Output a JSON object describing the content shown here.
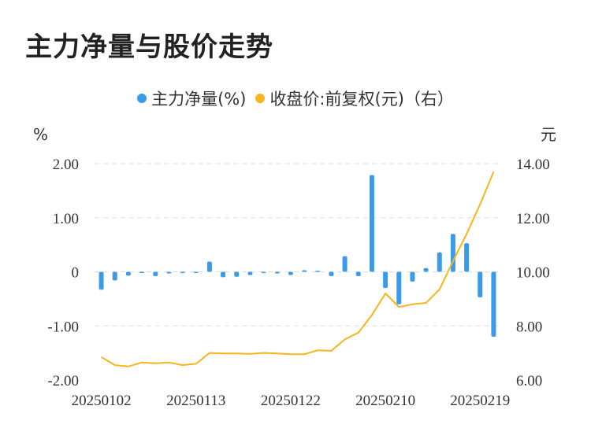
{
  "title": "主力净量与股价走势",
  "legend": {
    "series1": "主力净量(%)",
    "series2": "收盘价:前复权(元)（右）"
  },
  "colors": {
    "bar": "#3b9be8",
    "line": "#f5b51c",
    "grid": "#dddddd"
  },
  "chart_data": {
    "type": "bar+line",
    "title": "主力净量与股价走势",
    "left_unit": "%",
    "right_unit": "元",
    "ylim_left": [
      -2,
      2
    ],
    "ylim_right": [
      6,
      14
    ],
    "left_ticks": [
      "2.00",
      "1.00",
      "0",
      "-1.00",
      "-2.00"
    ],
    "right_ticks": [
      "14.00",
      "12.00",
      "10.00",
      "8.00",
      "6.00"
    ],
    "x_tick_labels": [
      "20250102",
      "20250113",
      "20250122",
      "20250210",
      "20250219"
    ],
    "x_tick_indices": [
      0,
      7,
      14,
      21,
      28
    ],
    "series": [
      {
        "name": "主力净量(%)",
        "kind": "bar",
        "values": [
          -0.33,
          -0.16,
          -0.07,
          0.0,
          -0.08,
          -0.03,
          -0.02,
          -0.02,
          0.19,
          -0.1,
          -0.09,
          -0.06,
          -0.02,
          -0.03,
          -0.06,
          0.03,
          0.02,
          -0.08,
          0.29,
          -0.08,
          1.79,
          -0.3,
          -0.6,
          -0.18,
          0.07,
          0.36,
          0.7,
          0.53,
          -0.47,
          -1.2
        ]
      },
      {
        "name": "收盘价:前复权(元)（右）",
        "kind": "line",
        "values": [
          6.85,
          6.55,
          6.5,
          6.65,
          6.62,
          6.65,
          6.55,
          6.6,
          7.0,
          6.98,
          6.98,
          6.97,
          7.0,
          6.98,
          6.95,
          6.95,
          7.1,
          7.08,
          7.5,
          7.75,
          8.4,
          9.2,
          8.7,
          8.8,
          8.85,
          9.35,
          10.4,
          11.4,
          12.5,
          13.7
        ]
      }
    ]
  }
}
